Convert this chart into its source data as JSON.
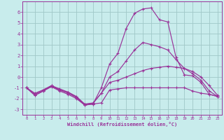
{
  "background_color": "#c8ecec",
  "grid_color": "#a0c8c8",
  "line_color": "#993399",
  "xlabel": "Windchill (Refroidissement éolien,°C)",
  "xlim": [
    -0.5,
    23.5
  ],
  "ylim": [
    -3.5,
    7.0
  ],
  "yticks": [
    -3,
    -2,
    -1,
    0,
    1,
    2,
    3,
    4,
    5,
    6
  ],
  "xticks": [
    0,
    1,
    2,
    3,
    4,
    5,
    6,
    7,
    8,
    9,
    10,
    11,
    12,
    13,
    14,
    15,
    16,
    17,
    18,
    19,
    20,
    21,
    22,
    23
  ],
  "series": [
    {
      "x": [
        0,
        1,
        2,
        3,
        4,
        5,
        6,
        7,
        8,
        9,
        10,
        11,
        12,
        13,
        14,
        15,
        16,
        17,
        18,
        19,
        20,
        21,
        22,
        23
      ],
      "y": [
        -1.0,
        -1.7,
        -1.3,
        -0.9,
        -1.3,
        -1.6,
        -2.0,
        -2.6,
        -2.5,
        -2.4,
        -1.2,
        -1.1,
        -1.0,
        -1.0,
        -1.0,
        -1.0,
        -1.0,
        -1.0,
        -1.0,
        -1.0,
        -1.3,
        -1.5,
        -1.6,
        -1.8
      ]
    },
    {
      "x": [
        0,
        1,
        2,
        3,
        4,
        5,
        6,
        7,
        8,
        9,
        10,
        11,
        12,
        13,
        14,
        15,
        16,
        17,
        18,
        19,
        20,
        21,
        22,
        23
      ],
      "y": [
        -1.0,
        -1.7,
        -1.3,
        -0.85,
        -1.2,
        -1.5,
        -1.9,
        -2.6,
        -2.5,
        -1.0,
        1.2,
        2.2,
        4.5,
        5.9,
        6.3,
        6.4,
        5.3,
        5.1,
        1.8,
        0.2,
        0.1,
        -0.5,
        -1.6,
        -1.8
      ]
    },
    {
      "x": [
        0,
        1,
        2,
        3,
        4,
        5,
        6,
        7,
        8,
        9,
        10,
        11,
        12,
        13,
        14,
        15,
        16,
        17,
        18,
        19,
        20,
        21,
        22,
        23
      ],
      "y": [
        -1.0,
        -1.5,
        -1.2,
        -0.8,
        -1.1,
        -1.4,
        -1.8,
        -2.5,
        -2.4,
        -1.5,
        -0.5,
        -0.3,
        0.0,
        0.3,
        0.6,
        0.8,
        0.9,
        1.0,
        0.9,
        0.8,
        0.5,
        0.0,
        -0.8,
        -1.7
      ]
    },
    {
      "x": [
        0,
        1,
        2,
        3,
        4,
        5,
        6,
        7,
        8,
        9,
        10,
        11,
        12,
        13,
        14,
        15,
        16,
        17,
        18,
        19,
        20,
        21,
        22,
        23
      ],
      "y": [
        -1.0,
        -1.6,
        -1.2,
        -0.8,
        -1.2,
        -1.4,
        -1.85,
        -2.55,
        -2.45,
        -1.5,
        0.0,
        0.5,
        1.5,
        2.5,
        3.2,
        3.0,
        2.8,
        2.5,
        1.6,
        0.8,
        0.3,
        -0.3,
        -1.3,
        -1.8
      ]
    }
  ]
}
